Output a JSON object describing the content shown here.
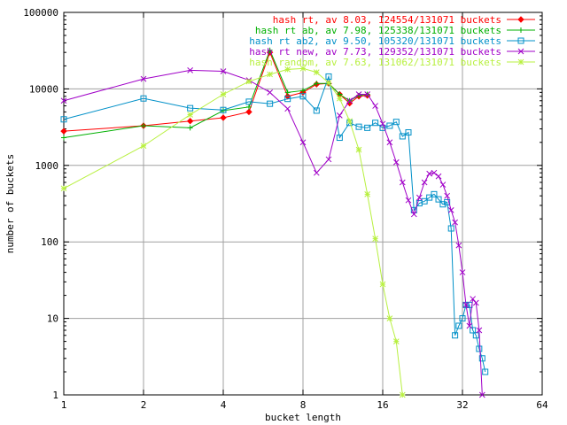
{
  "chart_data": {
    "type": "line",
    "xscale": "log2",
    "yscale": "log10",
    "xlim": [
      1,
      64
    ],
    "ylim": [
      1,
      100000
    ],
    "xticks": [
      1,
      2,
      4,
      8,
      16,
      32,
      64
    ],
    "xtick_labels": [
      "1",
      "2",
      "4",
      "8",
      "16",
      "32",
      "64"
    ],
    "yticks": [
      1,
      10,
      100,
      1000,
      10000,
      100000
    ],
    "ytick_labels": [
      "1",
      "10",
      "100",
      "1000",
      "10000",
      "100000"
    ],
    "grid": true,
    "legend_position": "top-right",
    "xlabel": "bucket length",
    "ylabel": "number of buckets",
    "series": [
      {
        "name": "hash rt, av 8.03, 124554/131071 buckets",
        "color": "#ff0000",
        "marker": "diamond",
        "points": [
          [
            1,
            2800
          ],
          [
            2,
            3300
          ],
          [
            3,
            3800
          ],
          [
            4,
            4200
          ],
          [
            5,
            5000
          ],
          [
            6,
            30000
          ],
          [
            7,
            8000
          ],
          [
            8,
            9000
          ],
          [
            9,
            11500
          ],
          [
            10,
            11800
          ],
          [
            11,
            8500
          ],
          [
            12,
            6500
          ],
          [
            13,
            8000
          ],
          [
            14,
            8200
          ]
        ]
      },
      {
        "name": "hash rt ab, av 7.98, 125338/131071 buckets",
        "color": "#00b000",
        "marker": "plus",
        "points": [
          [
            1,
            2300
          ],
          [
            2,
            3300
          ],
          [
            3,
            3100
          ],
          [
            4,
            5200
          ],
          [
            5,
            5800
          ],
          [
            6,
            32000
          ],
          [
            7,
            9000
          ],
          [
            8,
            9500
          ],
          [
            9,
            11800
          ],
          [
            10,
            11800
          ],
          [
            11,
            8500
          ],
          [
            12,
            7000
          ],
          [
            13,
            8200
          ],
          [
            14,
            8500
          ]
        ]
      },
      {
        "name": "hash rt ab2, av 9.50, 105320/131071 buckets",
        "color": "#0090c8",
        "marker": "square",
        "points": [
          [
            1,
            4000
          ],
          [
            2,
            7500
          ],
          [
            3,
            5600
          ],
          [
            4,
            5300
          ],
          [
            5,
            6800
          ],
          [
            6,
            6400
          ],
          [
            7,
            7400
          ],
          [
            8,
            8000
          ],
          [
            9,
            5200
          ],
          [
            10,
            14500
          ],
          [
            11,
            2300
          ],
          [
            12,
            3600
          ],
          [
            13,
            3200
          ],
          [
            14,
            3100
          ],
          [
            15,
            3600
          ],
          [
            16,
            3100
          ],
          [
            17,
            3300
          ],
          [
            18,
            3700
          ],
          [
            19,
            2400
          ],
          [
            20,
            2700
          ],
          [
            21,
            260
          ],
          [
            22,
            320
          ],
          [
            23,
            340
          ],
          [
            24,
            380
          ],
          [
            25,
            420
          ],
          [
            26,
            360
          ],
          [
            27,
            310
          ],
          [
            28,
            330
          ],
          [
            29,
            150
          ],
          [
            30,
            6
          ],
          [
            31,
            8
          ],
          [
            32,
            10
          ],
          [
            33,
            15
          ],
          [
            34,
            15
          ],
          [
            35,
            7
          ],
          [
            36,
            6
          ],
          [
            37,
            4
          ],
          [
            38,
            3
          ],
          [
            39,
            2
          ]
        ]
      },
      {
        "name": "hash rt new, av 7.73, 129352/131071 buckets",
        "color": "#a000c8",
        "marker": "cross",
        "points": [
          [
            1,
            7000
          ],
          [
            2,
            13500
          ],
          [
            3,
            17500
          ],
          [
            4,
            17000
          ],
          [
            5,
            13000
          ],
          [
            6,
            9000
          ],
          [
            7,
            5500
          ],
          [
            8,
            2000
          ],
          [
            9,
            800
          ],
          [
            10,
            1200
          ],
          [
            11,
            4500
          ],
          [
            12,
            7000
          ],
          [
            13,
            8500
          ],
          [
            14,
            8500
          ],
          [
            15,
            6000
          ],
          [
            16,
            3500
          ],
          [
            17,
            2000
          ],
          [
            18,
            1100
          ],
          [
            19,
            600
          ],
          [
            20,
            350
          ],
          [
            21,
            230
          ],
          [
            22,
            380
          ],
          [
            23,
            600
          ],
          [
            24,
            780
          ],
          [
            25,
            800
          ],
          [
            26,
            720
          ],
          [
            27,
            560
          ],
          [
            28,
            400
          ],
          [
            29,
            260
          ],
          [
            30,
            180
          ],
          [
            31,
            90
          ],
          [
            32,
            40
          ],
          [
            33,
            15
          ],
          [
            34,
            8
          ],
          [
            35,
            18
          ],
          [
            36,
            16
          ],
          [
            37,
            7
          ],
          [
            38,
            1
          ]
        ]
      },
      {
        "name": "hash random, av 7.63, 131062/131071 buckets",
        "color": "#b8f040",
        "marker": "star",
        "points": [
          [
            1,
            500
          ],
          [
            2,
            1800
          ],
          [
            3,
            4600
          ],
          [
            4,
            8500
          ],
          [
            5,
            12500
          ],
          [
            6,
            15500
          ],
          [
            7,
            18000
          ],
          [
            8,
            18500
          ],
          [
            9,
            16500
          ],
          [
            10,
            12000
          ],
          [
            11,
            7500
          ],
          [
            12,
            3800
          ],
          [
            13,
            1600
          ],
          [
            14,
            420
          ],
          [
            15,
            110
          ],
          [
            16,
            28
          ],
          [
            17,
            10
          ],
          [
            18,
            5
          ],
          [
            19,
            1
          ]
        ]
      }
    ]
  }
}
